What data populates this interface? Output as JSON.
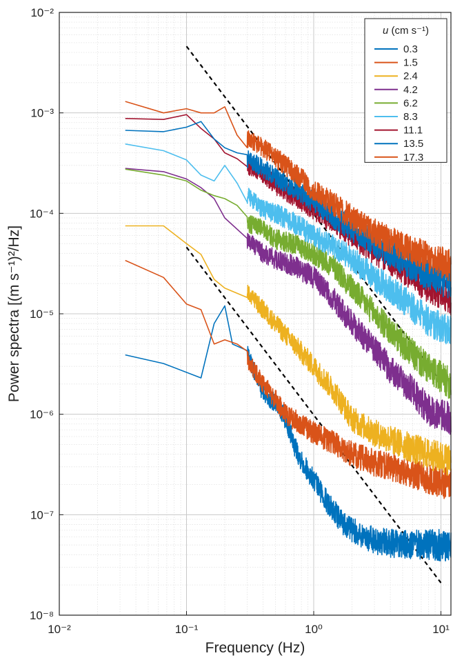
{
  "chart_data": {
    "type": "line",
    "x_scale": "log",
    "y_scale": "log",
    "xlim": [
      0.01,
      12
    ],
    "ylim": [
      1e-08,
      0.01
    ],
    "grid": "on (major and minor)",
    "legend_position": "top-right",
    "xlabel": "Frequency (Hz)",
    "ylabel": "Power spectra [(m s⁻¹)²/Hz]",
    "x_ticks": [
      {
        "value": 0.01,
        "label": "10⁻²"
      },
      {
        "value": 0.1,
        "label": "10⁻¹"
      },
      {
        "value": 1,
        "label": "10⁰"
      },
      {
        "value": 10,
        "label": "10¹"
      }
    ],
    "y_ticks": [
      {
        "value": 1e-08,
        "label": "10⁻⁸"
      },
      {
        "value": 1e-07,
        "label": "10⁻⁷"
      },
      {
        "value": 1e-06,
        "label": "10⁻⁶"
      },
      {
        "value": 1e-05,
        "label": "10⁻⁵"
      },
      {
        "value": 0.0001,
        "label": "10⁻⁴"
      },
      {
        "value": 0.001,
        "label": "10⁻³"
      },
      {
        "value": 0.01,
        "label": "10⁻²"
      }
    ],
    "legend_title_var": "u",
    "legend_title_unit": " (cm s⁻¹)",
    "series": [
      {
        "name": "0.3",
        "color": "#0072BD",
        "points": [
          [
            0.033,
            3.9e-06
          ],
          [
            0.066,
            3.2e-06
          ],
          [
            0.13,
            2.3e-06
          ],
          [
            0.165,
            8e-06
          ],
          [
            0.2,
            1.2e-05
          ],
          [
            0.23,
            5e-06
          ],
          [
            0.3,
            4e-06
          ],
          [
            0.35,
            2.5e-06
          ],
          [
            0.4,
            1.6e-06
          ],
          [
            0.5,
            1.3e-06
          ],
          [
            0.6,
            9e-07
          ],
          [
            0.7,
            5e-07
          ],
          [
            0.8,
            3.5e-07
          ],
          [
            1.0,
            2.2e-07
          ],
          [
            1.3,
            1.3e-07
          ],
          [
            1.6,
            9e-08
          ],
          [
            2.0,
            7e-08
          ],
          [
            3.0,
            5.5e-08
          ],
          [
            5.0,
            5e-08
          ],
          [
            8.0,
            5e-08
          ],
          [
            12.0,
            5e-08
          ]
        ]
      },
      {
        "name": "1.5",
        "color": "#D95319",
        "points": [
          [
            0.033,
            3.4e-05
          ],
          [
            0.066,
            2.3e-05
          ],
          [
            0.1,
            1.25e-05
          ],
          [
            0.13,
            1.1e-05
          ],
          [
            0.165,
            5e-06
          ],
          [
            0.2,
            5.5e-06
          ],
          [
            0.25,
            5e-06
          ],
          [
            0.3,
            3.5e-06
          ],
          [
            0.4,
            2e-06
          ],
          [
            0.5,
            1.4e-06
          ],
          [
            0.6,
            1e-06
          ],
          [
            0.8,
            8e-07
          ],
          [
            1.0,
            6.5e-07
          ],
          [
            1.5,
            5e-07
          ],
          [
            2.0,
            4e-07
          ],
          [
            3.0,
            3.3e-07
          ],
          [
            5.0,
            2.8e-07
          ],
          [
            8.0,
            2.3e-07
          ],
          [
            12.0,
            2e-07
          ]
        ]
      },
      {
        "name": "2.4",
        "color": "#EDB120",
        "points": [
          [
            0.033,
            7.5e-05
          ],
          [
            0.066,
            7.5e-05
          ],
          [
            0.1,
            5e-05
          ],
          [
            0.13,
            3.9e-05
          ],
          [
            0.165,
            2.2e-05
          ],
          [
            0.2,
            1.8e-05
          ],
          [
            0.3,
            1.6e-05
          ],
          [
            0.4,
            1.1e-05
          ],
          [
            0.5,
            8e-06
          ],
          [
            0.7,
            5e-06
          ],
          [
            1.0,
            3e-06
          ],
          [
            1.5,
            1.6e-06
          ],
          [
            2.0,
            9e-07
          ],
          [
            3.0,
            6.5e-07
          ],
          [
            5.0,
            5e-07
          ],
          [
            8.0,
            4e-07
          ],
          [
            12.0,
            3.5e-07
          ]
        ]
      },
      {
        "name": "4.2",
        "color": "#7E2F8E",
        "points": [
          [
            0.033,
            0.00028
          ],
          [
            0.066,
            0.00026
          ],
          [
            0.1,
            0.00022
          ],
          [
            0.13,
            0.00018
          ],
          [
            0.165,
            0.00014
          ],
          [
            0.2,
            9e-05
          ],
          [
            0.3,
            5.5e-05
          ],
          [
            0.4,
            4e-05
          ],
          [
            0.5,
            3.5e-05
          ],
          [
            0.7,
            3e-05
          ],
          [
            1.0,
            2.3e-05
          ],
          [
            1.5,
            1.3e-05
          ],
          [
            2.0,
            8e-06
          ],
          [
            3.0,
            4.5e-06
          ],
          [
            4.0,
            2.8e-06
          ],
          [
            6.0,
            1.7e-06
          ],
          [
            8.0,
            1.1e-06
          ],
          [
            12.0,
            9e-07
          ]
        ]
      },
      {
        "name": "6.2",
        "color": "#77AC30",
        "points": [
          [
            0.033,
            0.000275
          ],
          [
            0.066,
            0.00024
          ],
          [
            0.1,
            0.00021
          ],
          [
            0.13,
            0.00017
          ],
          [
            0.165,
            0.00015
          ],
          [
            0.2,
            0.00014
          ],
          [
            0.25,
            0.00012
          ],
          [
            0.3,
            8e-05
          ],
          [
            0.4,
            7e-05
          ],
          [
            0.5,
            5.5e-05
          ],
          [
            0.7,
            5e-05
          ],
          [
            1.0,
            4e-05
          ],
          [
            1.5,
            2.8e-05
          ],
          [
            2.0,
            1.8e-05
          ],
          [
            3.0,
            1e-05
          ],
          [
            5.0,
            5e-06
          ],
          [
            8.0,
            2.8e-06
          ],
          [
            12.0,
            2e-06
          ]
        ]
      },
      {
        "name": "8.3",
        "color": "#4DBEEE",
        "points": [
          [
            0.033,
            0.00049
          ],
          [
            0.066,
            0.00042
          ],
          [
            0.1,
            0.00034
          ],
          [
            0.13,
            0.00024
          ],
          [
            0.165,
            0.00021
          ],
          [
            0.2,
            0.0003
          ],
          [
            0.25,
            0.0002
          ],
          [
            0.3,
            0.00015
          ],
          [
            0.4,
            0.00011
          ],
          [
            0.5,
            0.0001
          ],
          [
            0.7,
            8e-05
          ],
          [
            1.0,
            6e-05
          ],
          [
            1.5,
            4.5e-05
          ],
          [
            2.0,
            3.5e-05
          ],
          [
            3.0,
            2.3e-05
          ],
          [
            5.0,
            1.4e-05
          ],
          [
            8.0,
            8.5e-06
          ],
          [
            12.0,
            6.5e-06
          ]
        ]
      },
      {
        "name": "11.1",
        "color": "#A2142F",
        "points": [
          [
            0.033,
            0.00088
          ],
          [
            0.066,
            0.00086
          ],
          [
            0.1,
            0.00096
          ],
          [
            0.13,
            0.0007
          ],
          [
            0.165,
            0.00055
          ],
          [
            0.2,
            0.0004
          ],
          [
            0.25,
            0.00035
          ],
          [
            0.3,
            0.0003
          ],
          [
            0.4,
            0.00025
          ],
          [
            0.5,
            0.00019
          ],
          [
            0.7,
            0.00015
          ],
          [
            1.0,
            0.00011
          ],
          [
            1.5,
            8e-05
          ],
          [
            2.0,
            6e-05
          ],
          [
            3.0,
            4.2e-05
          ],
          [
            5.0,
            2.8e-05
          ],
          [
            8.0,
            1.8e-05
          ],
          [
            12.0,
            1.4e-05
          ]
        ]
      },
      {
        "name": "13.5",
        "color": "#0072BD",
        "points": [
          [
            0.033,
            0.00067
          ],
          [
            0.066,
            0.00065
          ],
          [
            0.1,
            0.00072
          ],
          [
            0.13,
            0.00082
          ],
          [
            0.165,
            0.00055
          ],
          [
            0.2,
            0.00045
          ],
          [
            0.25,
            0.0004
          ],
          [
            0.3,
            0.00035
          ],
          [
            0.4,
            0.00028
          ],
          [
            0.5,
            0.00023
          ],
          [
            0.7,
            0.00018
          ],
          [
            1.0,
            0.00013
          ],
          [
            1.5,
            9e-05
          ],
          [
            2.0,
            7e-05
          ],
          [
            3.0,
            5e-05
          ],
          [
            5.0,
            3.4e-05
          ],
          [
            8.0,
            2.4e-05
          ],
          [
            12.0,
            2e-05
          ]
        ]
      },
      {
        "name": "17.3",
        "color": "#D95319",
        "points": [
          [
            0.033,
            0.0013
          ],
          [
            0.066,
            0.001
          ],
          [
            0.1,
            0.0011
          ],
          [
            0.13,
            0.001
          ],
          [
            0.165,
            0.001
          ],
          [
            0.2,
            0.00115
          ],
          [
            0.25,
            0.0006
          ],
          [
            0.3,
            0.00055
          ],
          [
            0.4,
            0.00045
          ],
          [
            0.5,
            0.00036
          ],
          [
            0.7,
            0.00026
          ],
          [
            1.0,
            0.00017
          ],
          [
            1.5,
            0.00012
          ],
          [
            2.0,
            9e-05
          ],
          [
            3.0,
            6.5e-05
          ],
          [
            5.0,
            4.8e-05
          ],
          [
            8.0,
            3.6e-05
          ],
          [
            12.0,
            3e-05
          ]
        ]
      }
    ],
    "reference_lines": [
      {
        "style": "dashed",
        "color": "#000000",
        "points": [
          [
            0.1,
            0.0046
          ],
          [
            10,
            2.1e-06
          ]
        ]
      },
      {
        "style": "dashed",
        "color": "#000000",
        "points": [
          [
            0.1,
            4.6e-05
          ],
          [
            10,
            2.1e-08
          ]
        ]
      }
    ]
  }
}
